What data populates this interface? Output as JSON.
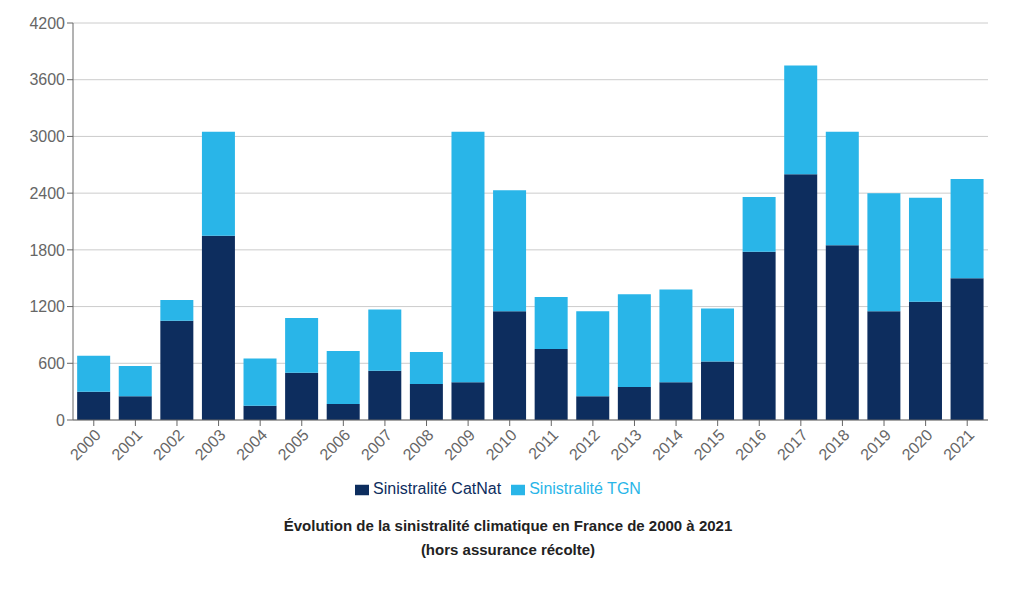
{
  "chart_data": {
    "type": "bar",
    "title": "Évolution de la sinistralité climatique en France de 2000 à 2021",
    "subtitle": "(hors assurance récolte)",
    "categories": [
      "2000",
      "2001",
      "2002",
      "2003",
      "2004",
      "2005",
      "2006",
      "2007",
      "2008",
      "2009",
      "2010",
      "2011",
      "2012",
      "2013",
      "2014",
      "2015",
      "2016",
      "2017",
      "2018",
      "2019",
      "2020",
      "2021"
    ],
    "series": [
      {
        "name": "Sinistralité CatNat",
        "color": "#0d2d5e",
        "values": [
          300,
          250,
          1050,
          1950,
          150,
          500,
          170,
          520,
          380,
          400,
          1150,
          750,
          250,
          350,
          400,
          620,
          1780,
          2600,
          1850,
          1150,
          1250,
          1500
        ]
      },
      {
        "name": "Sinistralité TGN",
        "color": "#29b5e8",
        "values": [
          380,
          320,
          220,
          1100,
          500,
          580,
          560,
          650,
          340,
          2650,
          1280,
          550,
          900,
          980,
          980,
          560,
          580,
          1150,
          1200,
          1250,
          1100,
          1050
        ]
      }
    ],
    "ylim": [
      0,
      4200
    ],
    "yticks": [
      0,
      600,
      1200,
      1800,
      2400,
      3000,
      3600,
      4200
    ],
    "stacked": true,
    "grid": true,
    "legend": "bottom"
  }
}
